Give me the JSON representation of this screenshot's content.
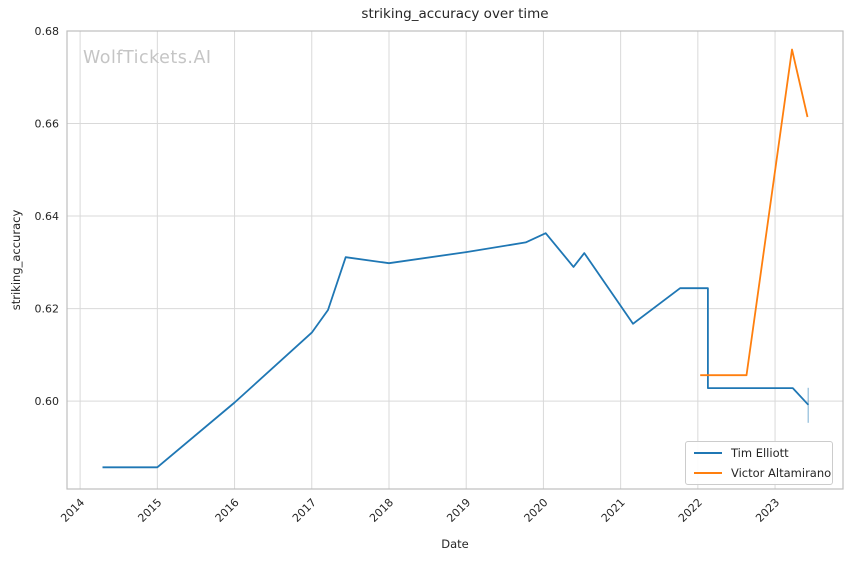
{
  "chart_data": {
    "type": "line",
    "title": "striking_accuracy over time",
    "xlabel": "Date",
    "ylabel": "striking_accuracy",
    "watermark": "WolfTickets.AI",
    "grid": true,
    "legend_position": "lower right",
    "xlim": [
      2013.83,
      2023.88
    ],
    "ylim": [
      0.581,
      0.68
    ],
    "x_ticks": {
      "values": [
        2014,
        2015,
        2016,
        2017,
        2018,
        2019,
        2020,
        2021,
        2022,
        2023
      ],
      "labels": [
        "2014",
        "2015",
        "2016",
        "2017",
        "2018",
        "2019",
        "2020",
        "2021",
        "2022",
        "2023"
      ]
    },
    "y_ticks": {
      "values": [
        0.6,
        0.62,
        0.64,
        0.66,
        0.68
      ],
      "labels": [
        "0.60",
        "0.62",
        "0.64",
        "0.66",
        "0.68"
      ]
    },
    "series": [
      {
        "name": "Tim Elliott",
        "color": "#1f77b4",
        "end_tick_marker": true,
        "points": [
          [
            2014.29,
            0.5857
          ],
          [
            2015.0,
            0.5857
          ],
          [
            2016.0,
            0.5997
          ],
          [
            2017.0,
            0.6148
          ],
          [
            2017.21,
            0.6197
          ],
          [
            2017.44,
            0.6311
          ],
          [
            2018.0,
            0.6298
          ],
          [
            2019.0,
            0.6322
          ],
          [
            2019.77,
            0.6343
          ],
          [
            2020.03,
            0.6363
          ],
          [
            2020.39,
            0.629
          ],
          [
            2020.53,
            0.632
          ],
          [
            2021.16,
            0.6167
          ],
          [
            2021.77,
            0.6244
          ],
          [
            2022.13,
            0.6244
          ],
          [
            2022.13,
            0.6028
          ],
          [
            2023.23,
            0.6028
          ],
          [
            2023.43,
            0.5992
          ]
        ]
      },
      {
        "name": "Victor Altamirano",
        "color": "#ff7f0e",
        "end_tick_marker": false,
        "points": [
          [
            2022.03,
            0.6056
          ],
          [
            2022.63,
            0.6056
          ],
          [
            2023.22,
            0.676
          ],
          [
            2023.42,
            0.6614
          ]
        ]
      }
    ],
    "style": {
      "grid_color": "#d9d9d9",
      "spine_color": "#bebebe",
      "tick_label_color": "#262626",
      "line_width": 1.8
    }
  }
}
